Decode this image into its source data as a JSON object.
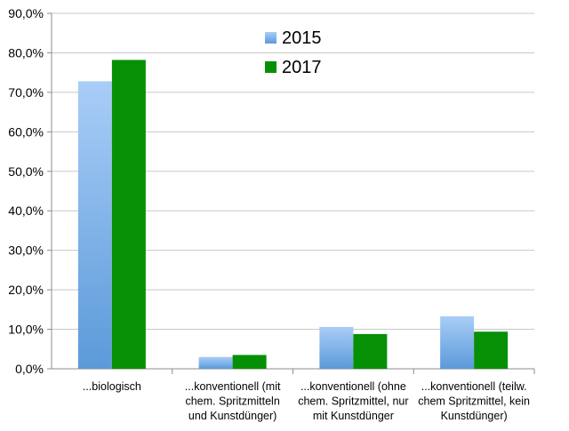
{
  "chart_data": {
    "type": "bar",
    "categories": [
      [
        "...biologisch"
      ],
      [
        "...konventionell (mit",
        "chem. Spritzmitteln",
        "und Kunstdünger)"
      ],
      [
        "...konventionell (ohne",
        "chem. Spritzmittel, nur",
        "mit Kunstdünger"
      ],
      [
        "...konventionell (teilw.",
        "chem Spritzmittel, kein",
        "Kunstdünger)"
      ]
    ],
    "series": [
      {
        "name": "2015",
        "values": [
          72.8,
          3.0,
          10.6,
          13.3
        ],
        "color_top": "#a9cdf7",
        "color_bottom": "#5b9ad9"
      },
      {
        "name": "2017",
        "values": [
          78.2,
          3.5,
          8.8,
          9.4
        ],
        "color": "#069006"
      }
    ],
    "ylim": [
      0,
      90
    ],
    "yticks": [
      0,
      10,
      20,
      30,
      40,
      50,
      60,
      70,
      80,
      90
    ],
    "ytick_labels": [
      "0,0%",
      "10,0%",
      "20,0%",
      "30,0%",
      "40,0%",
      "50,0%",
      "60,0%",
      "70,0%",
      "80,0%",
      "90,0%"
    ],
    "grid": true,
    "legend_position": "top-center",
    "title": "",
    "xlabel": "",
    "ylabel": ""
  }
}
